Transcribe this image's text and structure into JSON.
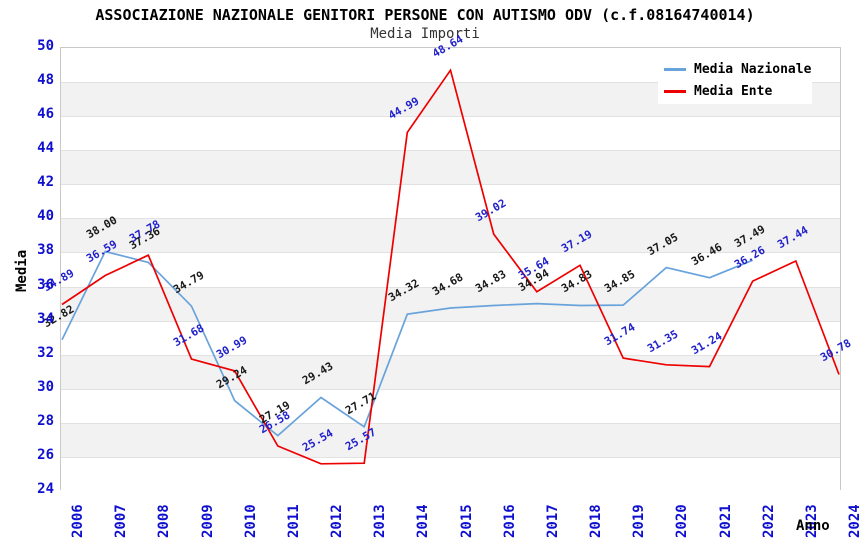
{
  "title": "ASSOCIAZIONE NAZIONALE GENITORI PERSONE CON AUTISMO ODV (c.f.08164740014)",
  "subtitle": "Media Importi",
  "legend": {
    "items": [
      {
        "label": "Media Nazionale",
        "color": "#69a3db"
      },
      {
        "label": "Media Ente",
        "color": "#ee0000"
      }
    ]
  },
  "colors": {
    "nazionale_line": "#69a3db",
    "ente_line": "#ee0000",
    "nazionale_value_label": "#1a1a1a",
    "ente_value_label": "#2222cc",
    "axis_tick_text": "#0f0fd0",
    "band_gray": "#f2f2f2",
    "gridline": "#e2e2e2"
  },
  "chart_data": {
    "type": "line",
    "title": "ASSOCIAZIONE NAZIONALE GENITORI PERSONE CON AUTISMO ODV (c.f.08164740014)",
    "subtitle": "Media Importi",
    "xlabel": "Anno",
    "ylabel": "Media",
    "ylim": [
      24,
      50
    ],
    "ytick_step": 2,
    "grid": "horizontal alternating bands",
    "legend_position": "top-right",
    "x": [
      2006,
      2007,
      2008,
      2009,
      2010,
      2011,
      2012,
      2013,
      2014,
      2015,
      2016,
      2017,
      2018,
      2019,
      2020,
      2021,
      2022,
      2023,
      2024
    ],
    "series": [
      {
        "name": "Media Nazionale",
        "color": "#69a3db",
        "label_color": "#1a1a1a",
        "values": [
          32.82,
          38.0,
          37.36,
          34.79,
          29.24,
          27.19,
          29.43,
          27.71,
          34.32,
          34.68,
          34.83,
          34.94,
          34.83,
          34.85,
          37.05,
          36.46,
          37.49,
          null,
          null
        ]
      },
      {
        "name": "Media Ente",
        "color": "#ee0000",
        "label_color": "#2222cc",
        "values": [
          34.89,
          36.59,
          37.78,
          31.68,
          30.99,
          26.58,
          25.54,
          25.57,
          44.99,
          48.64,
          39.02,
          35.64,
          37.19,
          31.74,
          31.35,
          31.24,
          36.26,
          37.44,
          30.78
        ]
      }
    ]
  }
}
